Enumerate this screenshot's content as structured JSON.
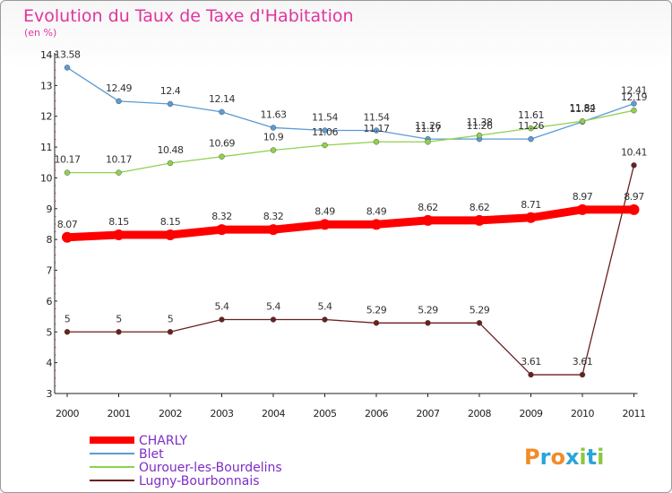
{
  "title": "Evolution du Taux de Taxe d'Habitation",
  "subtitle": "(en %)",
  "colors": {
    "title": "#e0359d",
    "legend_text": "#7d2dc6",
    "axis": "#222222"
  },
  "logo": "Proxiti",
  "chart_data": {
    "type": "line",
    "x": [
      "2000",
      "2001",
      "2002",
      "2003",
      "2004",
      "2005",
      "2006",
      "2007",
      "2008",
      "2009",
      "2010",
      "2011"
    ],
    "ylim": [
      3,
      14
    ],
    "yticks": [
      3,
      4,
      5,
      6,
      7,
      8,
      9,
      10,
      11,
      12,
      13,
      14
    ],
    "grid": false,
    "legend_position": "bottom-left",
    "series": [
      {
        "name": "CHARLY",
        "color": "#ff0000",
        "width": 9,
        "markerR": 6,
        "values": [
          8.07,
          8.15,
          8.15,
          8.32,
          8.32,
          8.49,
          8.49,
          8.62,
          8.62,
          8.71,
          8.97,
          8.97
        ],
        "labels": [
          "8.07",
          "8.15",
          "8.15",
          "8.32",
          "8.32",
          "8.49",
          "8.49",
          "8.62",
          "8.62",
          "8.71",
          "8.97",
          "8.97"
        ]
      },
      {
        "name": "Blet",
        "color": "#5b9bd5",
        "width": 1.3,
        "markerR": 3,
        "values": [
          13.58,
          12.49,
          12.4,
          12.14,
          11.63,
          11.54,
          11.54,
          11.26,
          11.26,
          11.26,
          11.82,
          12.41
        ],
        "labels": [
          "13.58",
          "12.49",
          "12.4",
          "12.14",
          "11.63",
          "11.54",
          "11.54",
          "11.26",
          "11.26",
          "11.26",
          "11.82",
          "12.41"
        ]
      },
      {
        "name": "Ourouer-les-Bourdelins",
        "color": "#8fd14f",
        "width": 1.3,
        "markerR": 3,
        "values": [
          10.17,
          10.17,
          10.48,
          10.69,
          10.9,
          11.06,
          11.17,
          11.17,
          11.38,
          11.61,
          11.84,
          12.19
        ],
        "labels": [
          "10.17",
          "10.17",
          "10.48",
          "10.69",
          "10.9",
          "11.06",
          "11.17",
          "11.17",
          "11.38",
          "11.61",
          "11.84",
          "12.19"
        ]
      },
      {
        "name": "Lugny-Bourbonnais",
        "color": "#6b1f1f",
        "width": 1.3,
        "markerR": 3,
        "values": [
          5,
          5,
          5,
          5.4,
          5.4,
          5.4,
          5.29,
          5.29,
          5.29,
          3.61,
          3.61,
          10.41
        ],
        "labels": [
          "5",
          "5",
          "5",
          "5.4",
          "5.4",
          "5.4",
          "5.29",
          "5.29",
          "5.29",
          "3.61",
          "3.61",
          "10.41"
        ]
      }
    ]
  }
}
